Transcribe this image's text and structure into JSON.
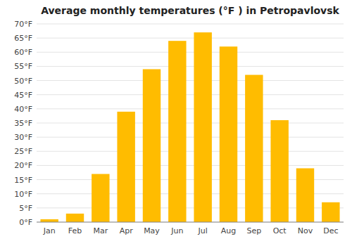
{
  "chart_data": {
    "type": "bar",
    "title": "Average monthly temperatures (°F ) in Petropavlovsk",
    "categories": [
      "Jan",
      "Feb",
      "Mar",
      "Apr",
      "May",
      "Jun",
      "Jul",
      "Aug",
      "Sep",
      "Oct",
      "Nov",
      "Dec"
    ],
    "values": [
      1,
      3,
      17,
      39,
      54,
      64,
      67,
      62,
      52,
      36,
      19,
      7
    ],
    "color": "#FFBC00",
    "ylim": [
      0,
      70
    ],
    "yticks": [
      {
        "value": 0,
        "label": "0°F"
      },
      {
        "value": 5,
        "label": "5°F"
      },
      {
        "value": 10,
        "label": "10°F"
      },
      {
        "value": 15,
        "label": "15°F"
      },
      {
        "value": 20,
        "label": "20°F"
      },
      {
        "value": 25,
        "label": "25°F"
      },
      {
        "value": 30,
        "label": "30°F"
      },
      {
        "value": 35,
        "label": "35°F"
      },
      {
        "value": 40,
        "label": "40°F"
      },
      {
        "value": 45,
        "label": "45°F"
      },
      {
        "value": 50,
        "label": "50°F"
      },
      {
        "value": 55,
        "label": "55°F"
      },
      {
        "value": 60,
        "label": "60°F"
      },
      {
        "value": 65,
        "label": "65°F"
      },
      {
        "value": 70,
        "label": "70°F"
      }
    ],
    "grid": true
  }
}
